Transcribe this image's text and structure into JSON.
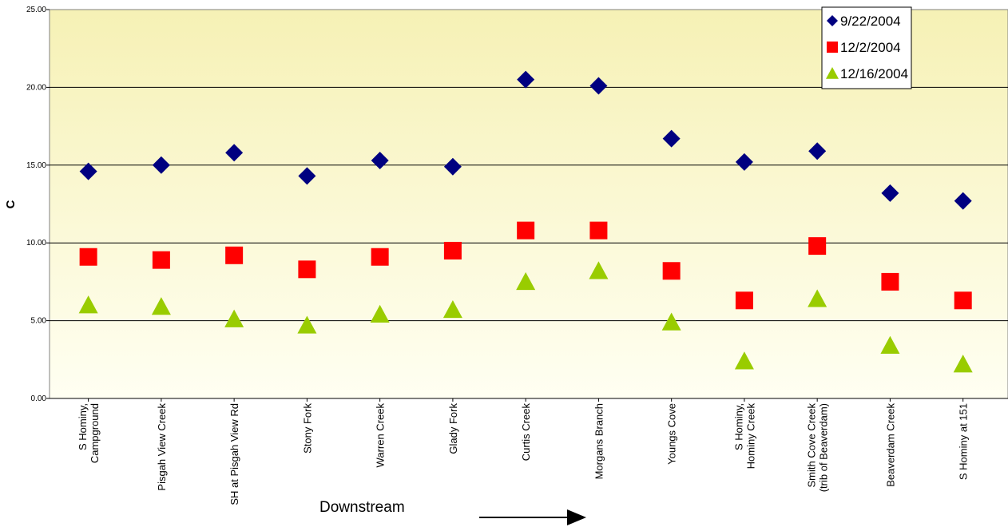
{
  "chart_data": {
    "type": "scatter",
    "title": "",
    "xlabel": "Downstream",
    "ylabel": "C",
    "ylim": [
      0,
      25
    ],
    "yticks": [
      "0.00",
      "5.00",
      "10.00",
      "15.00",
      "20.00",
      "25.00"
    ],
    "grid": true,
    "legend_position": "top-right",
    "categories": [
      [
        "S Hominy,",
        "Campground"
      ],
      [
        "Pisgah View Creek"
      ],
      [
        "SH at Pisgah View Rd"
      ],
      [
        "Stony Fork"
      ],
      [
        "Warren Creek"
      ],
      [
        "Glady Fork"
      ],
      [
        "Curtis Creek"
      ],
      [
        "Morgans Branch"
      ],
      [
        "Youngs Cove"
      ],
      [
        "S Hominy,",
        "Hominy Creek"
      ],
      [
        "Smith Cove Creek",
        "(trib of Beaverdam)"
      ],
      [
        "Beaverdam Creek"
      ],
      [
        "S Hominy at 151"
      ]
    ],
    "series": [
      {
        "name": "9/22/2004",
        "marker": "diamond",
        "color": "#000080",
        "values": [
          14.6,
          15.0,
          15.8,
          14.3,
          15.3,
          14.9,
          20.5,
          20.1,
          16.7,
          15.2,
          15.9,
          13.2,
          12.7
        ]
      },
      {
        "name": "12/2/2004",
        "marker": "square",
        "color": "#ff0000",
        "values": [
          9.1,
          8.9,
          9.2,
          8.3,
          9.1,
          9.5,
          10.8,
          10.8,
          8.2,
          6.3,
          9.8,
          7.5,
          6.3
        ]
      },
      {
        "name": "12/16/2004",
        "marker": "triangle",
        "color": "#99cc00",
        "values": [
          6.0,
          5.9,
          5.1,
          4.7,
          5.4,
          5.7,
          7.5,
          8.2,
          4.9,
          2.4,
          6.4,
          3.4,
          2.2
        ]
      }
    ]
  }
}
